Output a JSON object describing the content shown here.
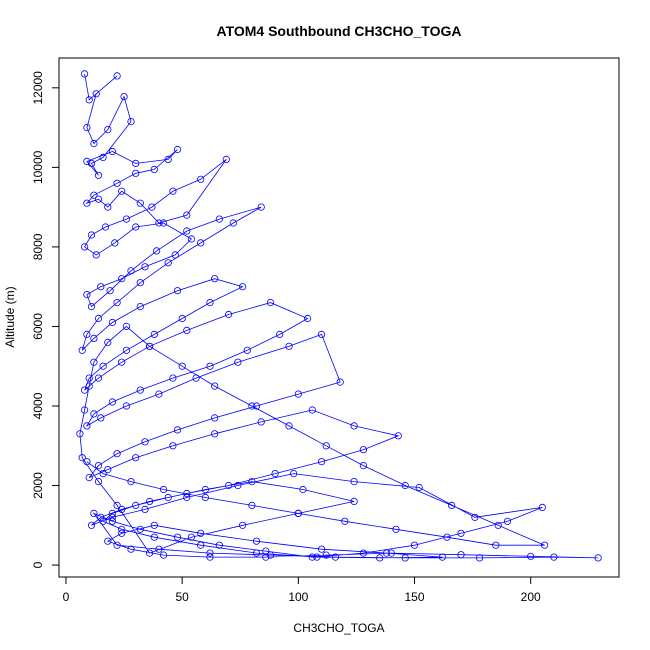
{
  "chart_data": {
    "type": "scatter",
    "title": "ATOM4 Southbound CH3CHO_TOGA",
    "xlabel": "CH3CHO_TOGA",
    "ylabel": "Altitude (m)",
    "xlim": [
      -3,
      238
    ],
    "ylim": [
      -300,
      12750
    ],
    "x_ticks": [
      0,
      50,
      100,
      150,
      200
    ],
    "y_ticks": [
      0,
      2000,
      4000,
      6000,
      8000,
      10000,
      12000
    ],
    "grid": false,
    "legend": "none",
    "series_color": "#0000ff",
    "marker": "open-circle",
    "connected": true,
    "series": [
      {
        "x": [
          8,
          10,
          22,
          13,
          9,
          12,
          18,
          25,
          28,
          16,
          11,
          14,
          9,
          20,
          30,
          44,
          48,
          38,
          30,
          22,
          12,
          9,
          14,
          18,
          24,
          32,
          40,
          52,
          69,
          58,
          46,
          37,
          26,
          17,
          11,
          8,
          13,
          21,
          30,
          42,
          54,
          47,
          34,
          24,
          15,
          9,
          11,
          19,
          28,
          39,
          52,
          66,
          84,
          72,
          58,
          44,
          32,
          22,
          14,
          9,
          7,
          12,
          20,
          32,
          48,
          64,
          76,
          62,
          50,
          38,
          26,
          16,
          10,
          8,
          14,
          24,
          36,
          52,
          70,
          88,
          104,
          92,
          78,
          62,
          46,
          32,
          20,
          12,
          9,
          15,
          26,
          40,
          56,
          74,
          96,
          110,
          118,
          100,
          82,
          64,
          48,
          34,
          22,
          14,
          10,
          18,
          30,
          46,
          64,
          84,
          106,
          124,
          143,
          128,
          110,
          90,
          70,
          52,
          36,
          24,
          15,
          11,
          20,
          34,
          52,
          74,
          98,
          124,
          152,
          176,
          205,
          190,
          170,
          150,
          128,
          106,
          86,
          66,
          48,
          32,
          20,
          12,
          22,
          40,
          62,
          88,
          116,
          146,
          178,
          210,
          229,
          200,
          170,
          140,
          112,
          86,
          62,
          42,
          28,
          18,
          24,
          38,
          58,
          82,
          110,
          138,
          162,
          135,
          108,
          82,
          58,
          38,
          24,
          16,
          20,
          30,
          44,
          60,
          80,
          102,
          124,
          100,
          76,
          54,
          36,
          22,
          14,
          7,
          6,
          8,
          10,
          12,
          18,
          26,
          36,
          50,
          64,
          80,
          96,
          112,
          128,
          146,
          166,
          186,
          206,
          185,
          164,
          142,
          120,
          100,
          80,
          60,
          42,
          28,
          16,
          9
        ],
        "y": [
          12350,
          11700,
          12300,
          11850,
          11000,
          10600,
          10950,
          11780,
          11150,
          10250,
          10100,
          9800,
          10150,
          10400,
          10100,
          10200,
          10450,
          9950,
          9850,
          9600,
          9300,
          9100,
          9200,
          9000,
          9400,
          9100,
          8600,
          8800,
          10200,
          9700,
          9400,
          9000,
          8700,
          8500,
          8300,
          8000,
          7800,
          8100,
          8500,
          8600,
          8200,
          7800,
          7500,
          7200,
          7000,
          6800,
          6500,
          6900,
          7400,
          7900,
          8400,
          8700,
          9000,
          8600,
          8100,
          7600,
          7100,
          6600,
          6200,
          5800,
          5400,
          5700,
          6100,
          6500,
          6900,
          7200,
          7000,
          6600,
          6200,
          5800,
          5400,
          5000,
          4700,
          4400,
          4700,
          5100,
          5500,
          5900,
          6300,
          6600,
          6200,
          5800,
          5400,
          5000,
          4700,
          4400,
          4100,
          3800,
          3500,
          3700,
          4000,
          4300,
          4700,
          5100,
          5500,
          5800,
          4600,
          4300,
          4000,
          3700,
          3400,
          3100,
          2800,
          2500,
          2200,
          2400,
          2700,
          3000,
          3300,
          3600,
          3900,
          3500,
          3250,
          2900,
          2600,
          2300,
          2000,
          1800,
          1600,
          1400,
          1200,
          1000,
          1200,
          1400,
          1700,
          2000,
          2300,
          2100,
          1950,
          1200,
          1450,
          1100,
          800,
          500,
          300,
          200,
          350,
          500,
          700,
          900,
          1100,
          1300,
          500,
          400,
          300,
          250,
          200,
          180,
          180,
          200,
          180,
          220,
          260,
          300,
          250,
          200,
          200,
          250,
          400,
          600,
          800,
          1000,
          800,
          600,
          400,
          300,
          200,
          180,
          200,
          300,
          500,
          700,
          900,
          1100,
          1300,
          1500,
          1700,
          1900,
          2100,
          1900,
          1600,
          1300,
          1000,
          700,
          300,
          1500,
          2100,
          2700,
          3300,
          3900,
          4500,
          5100,
          5600,
          6000,
          5500,
          5000,
          4500,
          4000,
          3500,
          3000,
          2500,
          2000,
          1500,
          1000,
          500,
          500,
          700,
          900,
          1100,
          1300,
          1500,
          1700,
          1900,
          2100,
          2300,
          2600
        ]
      }
    ]
  }
}
